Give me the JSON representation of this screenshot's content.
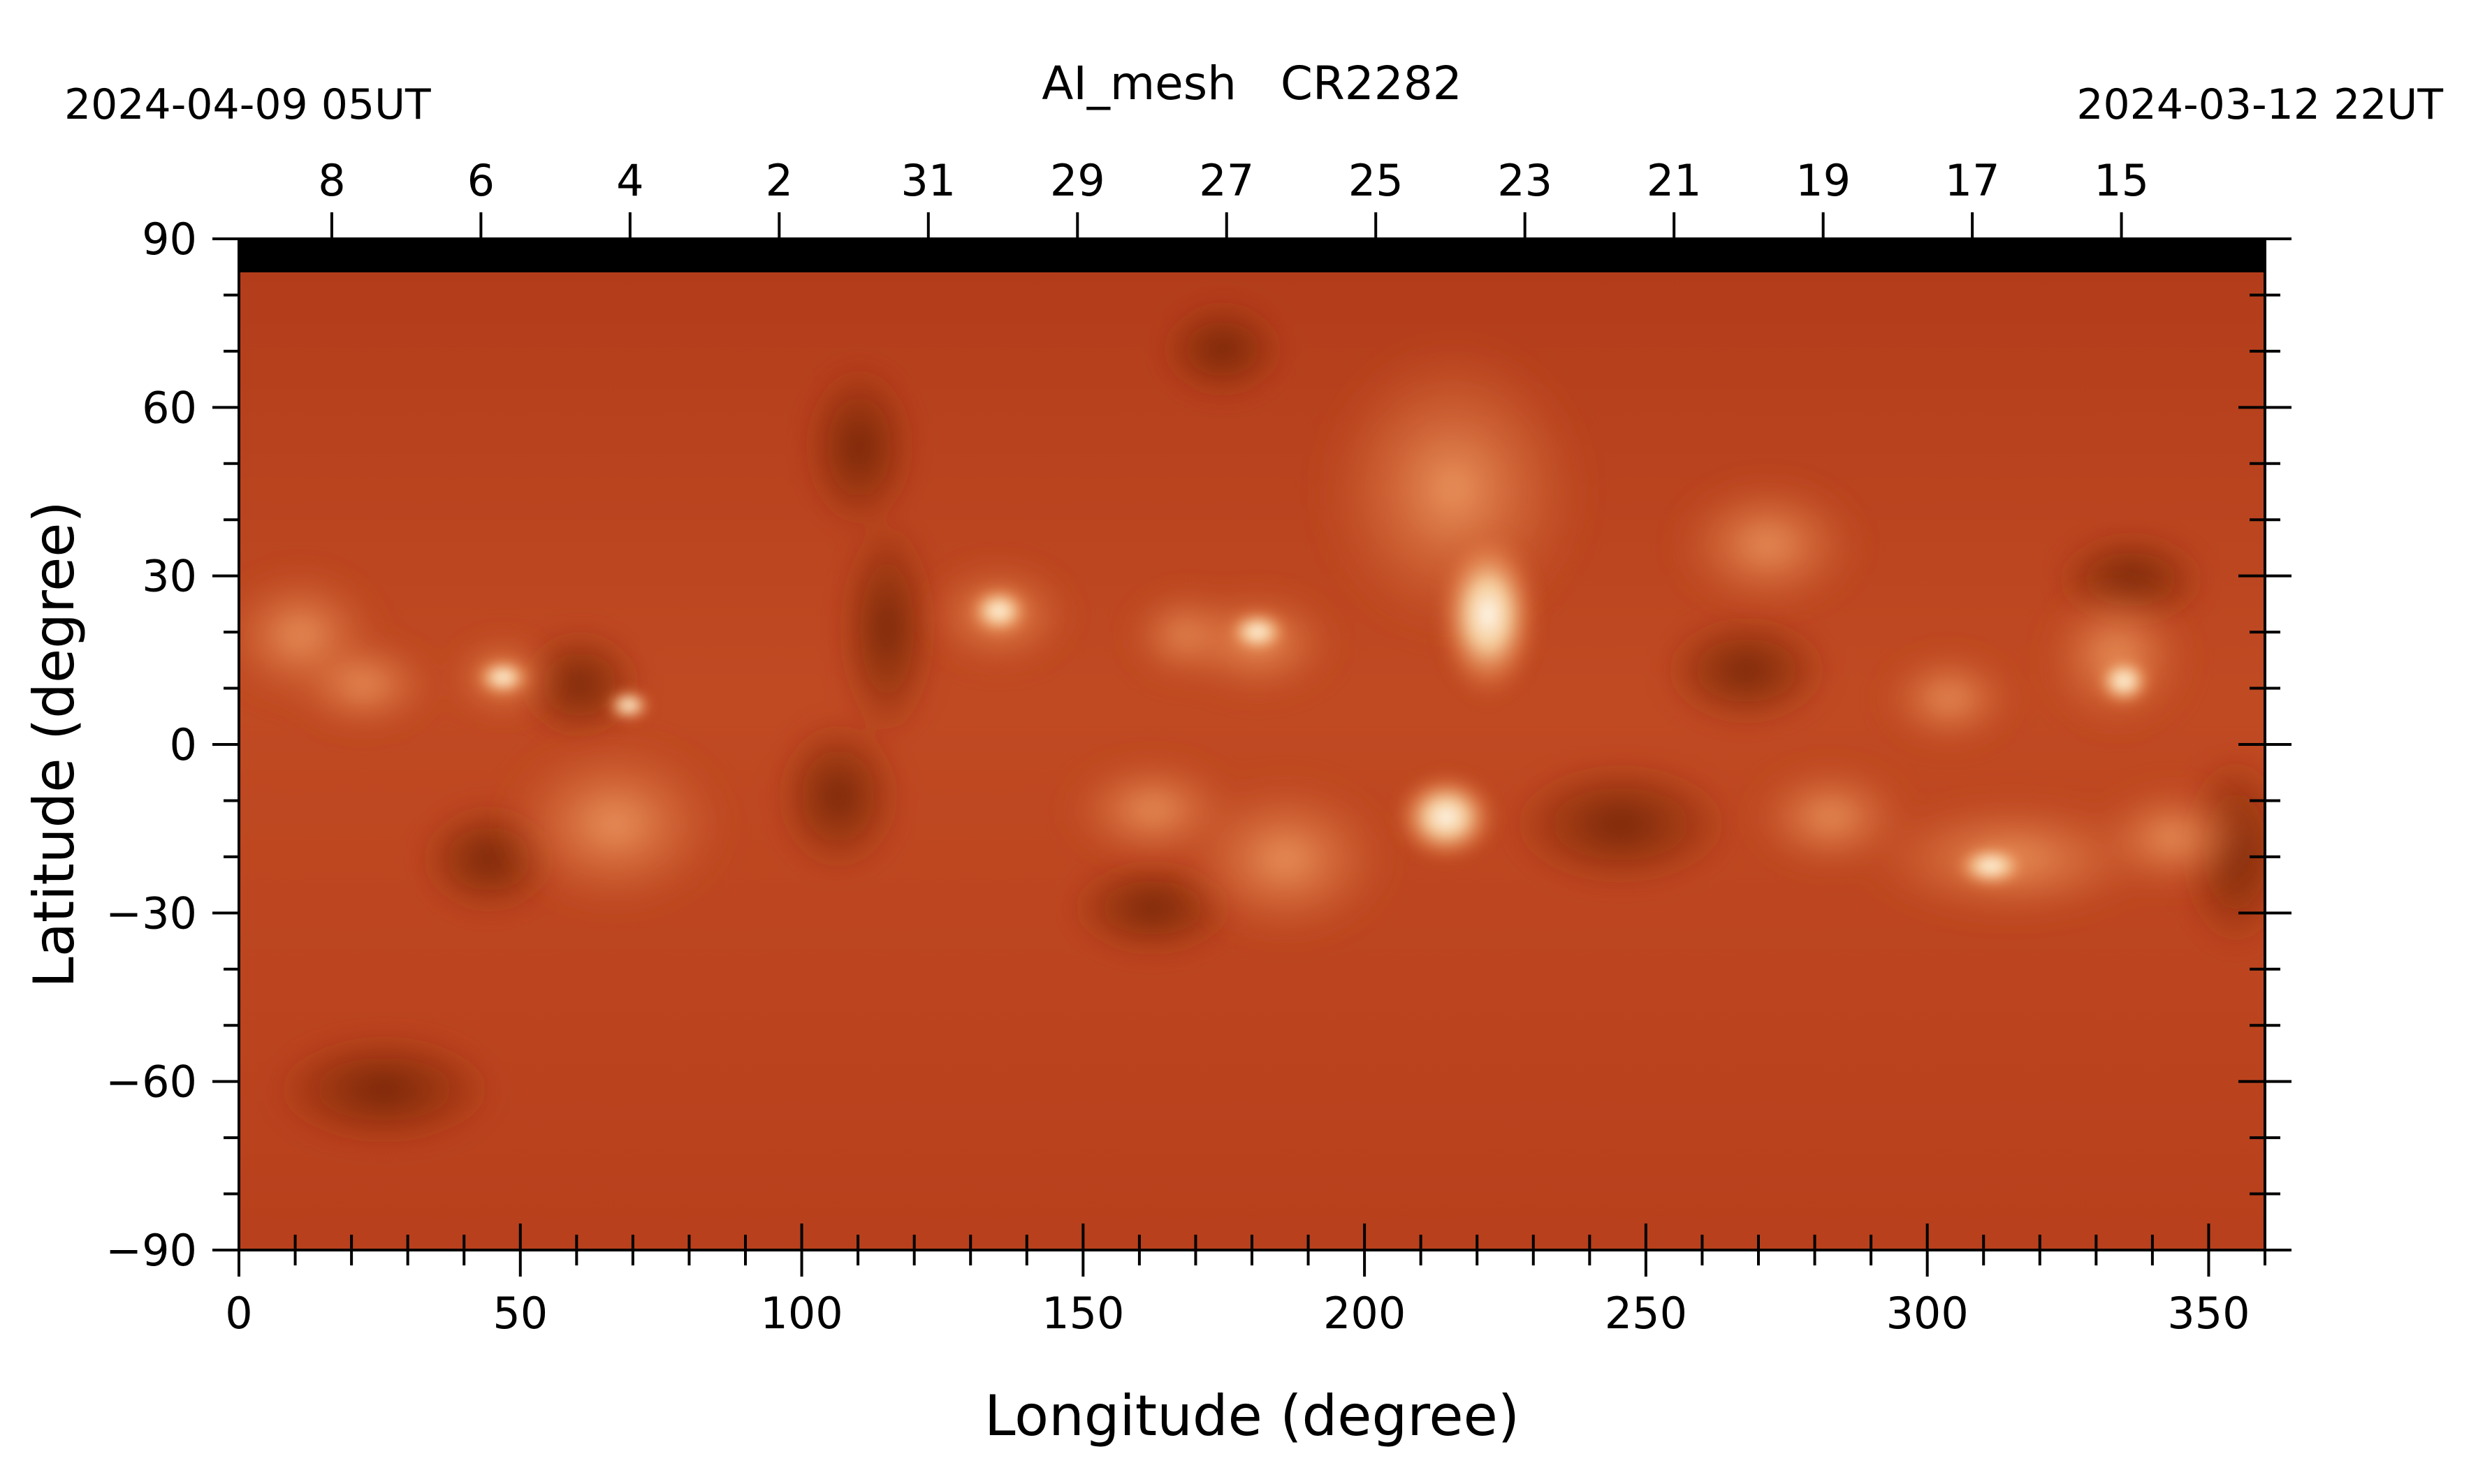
{
  "title": "AI_mesh   CR2282",
  "date_left": "2024-04-09 05UT",
  "date_right": "2024-03-12 22UT",
  "xlabel": "Longitude (degree)",
  "ylabel": "Latitude (degree)",
  "x_ticks": [
    "0",
    "50",
    "100",
    "150",
    "200",
    "250",
    "300",
    "350"
  ],
  "y_ticks": [
    "90",
    "60",
    "30",
    "0",
    "−30",
    "−60",
    "−90"
  ],
  "top_ticks": [
    "8",
    "6",
    "4",
    "2",
    "31",
    "29",
    "27",
    "25",
    "23",
    "21",
    "19",
    "17",
    "15"
  ],
  "colors": {
    "map_base": "#b8401c",
    "map_dark": "#6e1e08",
    "map_bright": "#fff2d8",
    "polar_mask": "#000000"
  },
  "scale": {
    "lon_range": [
      0,
      360
    ],
    "lat_range": [
      -90,
      90
    ]
  },
  "top_tick_longitudes": [
    16.5,
    43,
    69.5,
    96,
    122.5,
    149,
    175.5,
    202,
    228.5,
    255,
    281.5,
    308,
    334.5
  ]
}
